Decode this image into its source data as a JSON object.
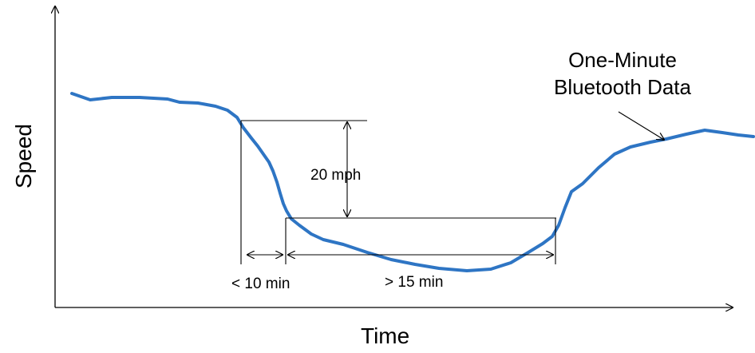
{
  "axes": {
    "x_label": "Time",
    "y_label": "Speed"
  },
  "callout": {
    "line1": "One-Minute",
    "line2": "Bluetooth Data"
  },
  "annotations": {
    "speed_drop": "20 mph",
    "transition_time": "< 10 min",
    "duration": "> 15 min"
  },
  "colors": {
    "curve": "#2E75C4",
    "lines": "#000000"
  }
}
